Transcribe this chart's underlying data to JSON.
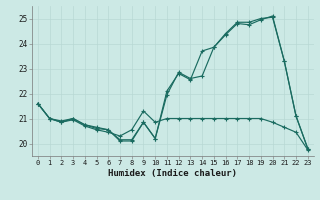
{
  "title": "",
  "xlabel": "Humidex (Indice chaleur)",
  "xlim": [
    -0.5,
    23.5
  ],
  "ylim": [
    19.5,
    25.5
  ],
  "xticks": [
    0,
    1,
    2,
    3,
    4,
    5,
    6,
    7,
    8,
    9,
    10,
    11,
    12,
    13,
    14,
    15,
    16,
    17,
    18,
    19,
    20,
    21,
    22,
    23
  ],
  "yticks": [
    20,
    21,
    22,
    23,
    24,
    25
  ],
  "bg_color": "#cce9e5",
  "grid_color": "#b8d8d4",
  "line_color": "#1a6b60",
  "curves": [
    [
      21.6,
      21.0,
      20.9,
      21.0,
      20.75,
      20.65,
      20.55,
      20.1,
      20.1,
      20.85,
      20.2,
      22.1,
      22.8,
      22.55,
      23.7,
      23.85,
      24.35,
      24.8,
      24.75,
      24.95,
      25.1,
      23.3,
      21.1,
      19.8
    ],
    [
      21.6,
      21.0,
      20.85,
      21.0,
      20.75,
      20.6,
      20.55,
      20.15,
      20.15,
      20.85,
      20.2,
      21.95,
      22.85,
      22.6,
      22.7,
      23.85,
      24.4,
      24.85,
      24.85,
      25.0,
      25.05,
      23.3,
      21.1,
      19.8
    ],
    [
      21.6,
      21.0,
      20.85,
      20.95,
      20.7,
      20.55,
      20.45,
      20.3,
      20.55,
      21.3,
      20.85,
      21.0,
      21.0,
      21.0,
      21.0,
      21.0,
      21.0,
      21.0,
      21.0,
      21.0,
      20.85,
      20.65,
      20.45,
      19.75
    ]
  ]
}
